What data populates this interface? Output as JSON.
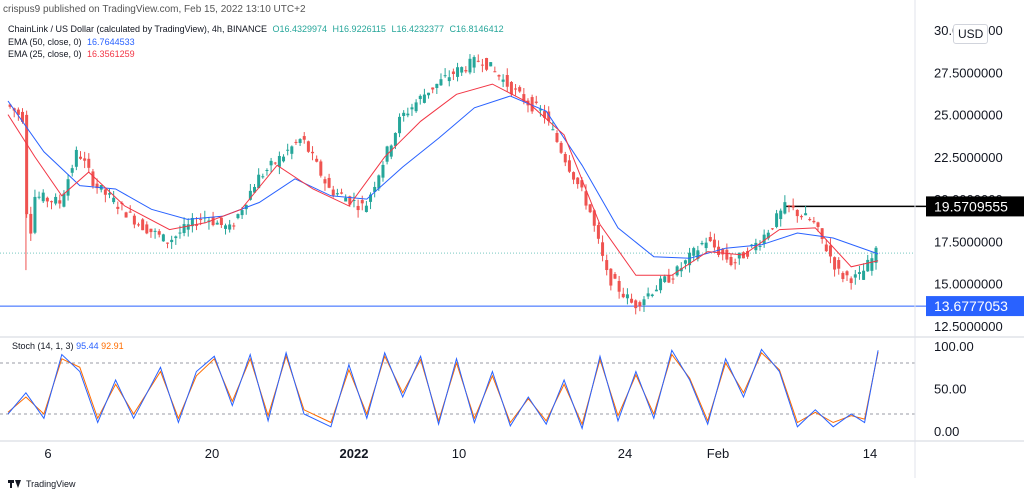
{
  "header": {
    "text": "crispus9 published on TradingView.com, Feb 15, 2022 13:10 UTC+2"
  },
  "legend": {
    "symbol": "ChainLink / US Dollar (calculated by TradingView), 4h, BINANCE",
    "o": "O16.4329974",
    "h": "H16.9226115",
    "l": "L16.4232377",
    "c": "C16.8146412",
    "ema50_label": "EMA (50, close, 0)",
    "ema50_value": "16.7644533",
    "ema25_label": "EMA (25, close, 0)",
    "ema25_value": "16.3561259"
  },
  "currency": "USD",
  "stoch": {
    "label": "Stoch (14, 1, 3)",
    "k_value": "95.44",
    "d_value": "92.91"
  },
  "footer": {
    "brand": "TradingView"
  },
  "colors": {
    "up": "#26a69a",
    "down": "#ef5350",
    "ema50": "#2962ff",
    "ema25": "#f23645",
    "stochK": "#2962ff",
    "stochD": "#ff6d00"
  },
  "chart_data": {
    "type": "line",
    "title": "ChainLink / US Dollar (calculated by TradingView), 4h, BINANCE",
    "ylim": [
      12.5,
      30.0
    ],
    "y_ticks": [
      "30.0000000",
      "27.5000000",
      "25.0000000",
      "22.5000000",
      "20.0000000",
      "17.5000000",
      "15.0000000",
      "12.5000000"
    ],
    "y_tick_values": [
      30.0,
      27.5,
      25.0,
      22.5,
      20.0,
      17.5,
      15.0,
      12.5
    ],
    "x_ticks": [
      "6",
      "20",
      "2022",
      "10",
      "24",
      "Feb",
      "14"
    ],
    "horizontal_levels": [
      {
        "value": 19.5709555,
        "label": "19.5709555",
        "color": "#000000"
      },
      {
        "value": 13.6777053,
        "label": "13.6777053",
        "color": "#2962ff"
      }
    ],
    "price_path": [
      [
        0,
        25.6
      ],
      [
        0.02,
        24.8
      ],
      [
        0.025,
        16.0
      ],
      [
        0.03,
        20.2
      ],
      [
        0.06,
        19.8
      ],
      [
        0.08,
        22.9
      ],
      [
        0.1,
        20.8
      ],
      [
        0.15,
        18.5
      ],
      [
        0.18,
        17.5
      ],
      [
        0.22,
        19.0
      ],
      [
        0.25,
        18.2
      ],
      [
        0.28,
        21.2
      ],
      [
        0.33,
        23.6
      ],
      [
        0.36,
        20.6
      ],
      [
        0.4,
        19.5
      ],
      [
        0.44,
        24.8
      ],
      [
        0.47,
        26.4
      ],
      [
        0.5,
        27.5
      ],
      [
        0.53,
        28.3
      ],
      [
        0.57,
        26.2
      ],
      [
        0.6,
        25.0
      ],
      [
        0.62,
        22.8
      ],
      [
        0.65,
        19.5
      ],
      [
        0.67,
        15.5
      ],
      [
        0.7,
        13.7
      ],
      [
        0.72,
        14.6
      ],
      [
        0.75,
        15.8
      ],
      [
        0.78,
        17.6
      ],
      [
        0.81,
        16.2
      ],
      [
        0.84,
        17.5
      ],
      [
        0.87,
        19.6
      ],
      [
        0.9,
        18.6
      ],
      [
        0.93,
        15.5
      ],
      [
        0.95,
        15.3
      ],
      [
        0.97,
        16.8
      ]
    ],
    "ema25_path": [
      [
        0,
        25.0
      ],
      [
        0.03,
        22.5
      ],
      [
        0.06,
        20.2
      ],
      [
        0.09,
        21.6
      ],
      [
        0.13,
        19.6
      ],
      [
        0.18,
        18.2
      ],
      [
        0.22,
        18.6
      ],
      [
        0.26,
        19.4
      ],
      [
        0.3,
        22.0
      ],
      [
        0.34,
        20.6
      ],
      [
        0.38,
        19.6
      ],
      [
        0.42,
        22.5
      ],
      [
        0.46,
        24.6
      ],
      [
        0.5,
        26.2
      ],
      [
        0.54,
        26.8
      ],
      [
        0.58,
        25.7
      ],
      [
        0.62,
        23.8
      ],
      [
        0.66,
        18.5
      ],
      [
        0.7,
        15.5
      ],
      [
        0.74,
        15.5
      ],
      [
        0.78,
        16.9
      ],
      [
        0.82,
        16.7
      ],
      [
        0.86,
        18.2
      ],
      [
        0.9,
        18.3
      ],
      [
        0.94,
        16.0
      ],
      [
        0.97,
        16.36
      ]
    ],
    "ema50_path": [
      [
        0,
        25.8
      ],
      [
        0.04,
        22.8
      ],
      [
        0.08,
        20.8
      ],
      [
        0.12,
        20.6
      ],
      [
        0.16,
        19.4
      ],
      [
        0.2,
        18.8
      ],
      [
        0.24,
        19.0
      ],
      [
        0.28,
        19.8
      ],
      [
        0.32,
        21.2
      ],
      [
        0.36,
        20.2
      ],
      [
        0.4,
        20.0
      ],
      [
        0.44,
        21.9
      ],
      [
        0.48,
        23.6
      ],
      [
        0.52,
        25.4
      ],
      [
        0.56,
        26.1
      ],
      [
        0.6,
        25.2
      ],
      [
        0.64,
        22.0
      ],
      [
        0.68,
        18.3
      ],
      [
        0.72,
        16.6
      ],
      [
        0.76,
        16.5
      ],
      [
        0.8,
        17.1
      ],
      [
        0.84,
        17.3
      ],
      [
        0.88,
        18.0
      ],
      [
        0.92,
        17.7
      ],
      [
        0.97,
        16.76
      ]
    ],
    "stoch_ylim": [
      0,
      100
    ],
    "stoch_ticks": [
      "100.00",
      "50.00",
      "0.00"
    ],
    "stoch_tick_values": [
      100,
      50,
      0
    ],
    "stoch_levels": [
      80,
      20
    ],
    "stoch_k_path": [
      [
        0,
        20
      ],
      [
        0.02,
        45
      ],
      [
        0.04,
        15
      ],
      [
        0.06,
        90
      ],
      [
        0.08,
        70
      ],
      [
        0.1,
        10
      ],
      [
        0.12,
        60
      ],
      [
        0.14,
        15
      ],
      [
        0.17,
        75
      ],
      [
        0.19,
        10
      ],
      [
        0.21,
        70
      ],
      [
        0.23,
        88
      ],
      [
        0.25,
        30
      ],
      [
        0.27,
        90
      ],
      [
        0.29,
        12
      ],
      [
        0.31,
        92
      ],
      [
        0.33,
        20
      ],
      [
        0.36,
        5
      ],
      [
        0.38,
        78
      ],
      [
        0.4,
        15
      ],
      [
        0.42,
        92
      ],
      [
        0.44,
        40
      ],
      [
        0.46,
        88
      ],
      [
        0.48,
        8
      ],
      [
        0.5,
        85
      ],
      [
        0.52,
        10
      ],
      [
        0.54,
        70
      ],
      [
        0.56,
        6
      ],
      [
        0.58,
        40
      ],
      [
        0.6,
        8
      ],
      [
        0.62,
        60
      ],
      [
        0.64,
        3
      ],
      [
        0.66,
        88
      ],
      [
        0.68,
        12
      ],
      [
        0.7,
        70
      ],
      [
        0.72,
        15
      ],
      [
        0.74,
        95
      ],
      [
        0.76,
        60
      ],
      [
        0.78,
        8
      ],
      [
        0.8,
        85
      ],
      [
        0.82,
        40
      ],
      [
        0.84,
        96
      ],
      [
        0.86,
        70
      ],
      [
        0.88,
        5
      ],
      [
        0.9,
        25
      ],
      [
        0.92,
        5
      ],
      [
        0.94,
        20
      ],
      [
        0.955,
        10
      ],
      [
        0.97,
        95
      ]
    ],
    "stoch_d_path": [
      [
        0,
        22
      ],
      [
        0.02,
        40
      ],
      [
        0.04,
        20
      ],
      [
        0.06,
        85
      ],
      [
        0.08,
        75
      ],
      [
        0.1,
        15
      ],
      [
        0.12,
        55
      ],
      [
        0.14,
        20
      ],
      [
        0.17,
        70
      ],
      [
        0.19,
        15
      ],
      [
        0.21,
        65
      ],
      [
        0.23,
        85
      ],
      [
        0.25,
        35
      ],
      [
        0.27,
        85
      ],
      [
        0.29,
        18
      ],
      [
        0.31,
        88
      ],
      [
        0.33,
        25
      ],
      [
        0.36,
        10
      ],
      [
        0.38,
        72
      ],
      [
        0.4,
        20
      ],
      [
        0.42,
        88
      ],
      [
        0.44,
        45
      ],
      [
        0.46,
        84
      ],
      [
        0.48,
        12
      ],
      [
        0.5,
        80
      ],
      [
        0.52,
        15
      ],
      [
        0.54,
        65
      ],
      [
        0.56,
        10
      ],
      [
        0.58,
        38
      ],
      [
        0.6,
        12
      ],
      [
        0.62,
        55
      ],
      [
        0.64,
        8
      ],
      [
        0.66,
        84
      ],
      [
        0.68,
        18
      ],
      [
        0.7,
        66
      ],
      [
        0.72,
        20
      ],
      [
        0.74,
        90
      ],
      [
        0.76,
        62
      ],
      [
        0.78,
        12
      ],
      [
        0.8,
        80
      ],
      [
        0.82,
        45
      ],
      [
        0.84,
        92
      ],
      [
        0.86,
        72
      ],
      [
        0.88,
        10
      ],
      [
        0.9,
        22
      ],
      [
        0.92,
        10
      ],
      [
        0.94,
        18
      ],
      [
        0.955,
        14
      ],
      [
        0.97,
        92.9
      ]
    ],
    "current_price": 16.8146412,
    "grid": false
  }
}
